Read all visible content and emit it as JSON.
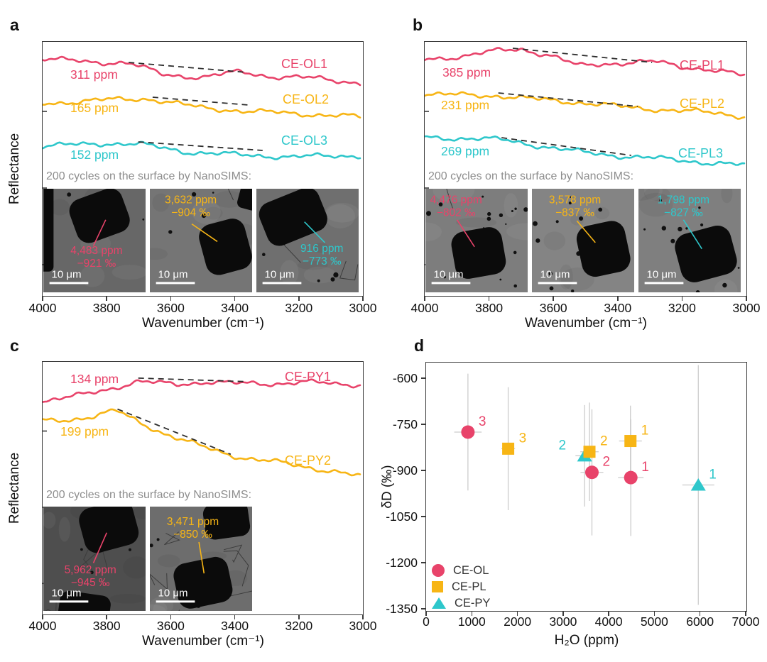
{
  "colors": {
    "red": "#e8436a",
    "yellow": "#f7b515",
    "cyan": "#2ec7cb",
    "inset_text": "#8e8e8e",
    "error_bar": "#cccccc",
    "axis": "#3a3a3a",
    "dashed": "#2d2d2d",
    "sem_text_scale": "#ffffff"
  },
  "chart_data": [
    {
      "panel_label": "a",
      "type": "line",
      "ylabel": "Reflectance",
      "xlabel": "Wavenumber (cm⁻¹)",
      "x_ticks": [
        "4000",
        "3800",
        "3600",
        "3400",
        "3200",
        "3000"
      ],
      "x_range": [
        4000,
        3000
      ],
      "x_axis_reversed": true,
      "y_axis_note": "arbitrary units, offset spectra",
      "inset_title": "200 cycles on the surface by NanoSIMS:",
      "series": [
        {
          "name": "CE-OL1",
          "water_label": "311 ppm",
          "color_key": "red",
          "seed": 1,
          "anchors": [
            [
              0,
              24
            ],
            [
              0.15,
              28
            ],
            [
              0.27,
              30
            ],
            [
              0.38,
              46
            ],
            [
              0.5,
              50
            ],
            [
              0.62,
              42
            ],
            [
              0.72,
              49
            ],
            [
              0.85,
              51
            ],
            [
              1,
              58
            ]
          ],
          "dashed": [
            [
              0.27,
              29
            ],
            [
              0.64,
              43
            ]
          ],
          "name_pos": [
            337,
            22
          ],
          "ppm_pos": [
            40,
            37
          ]
        },
        {
          "name": "CE-OL2",
          "water_label": "165 ppm",
          "color_key": "yellow",
          "seed": 2,
          "anchors": [
            [
              0,
              87
            ],
            [
              0.18,
              82
            ],
            [
              0.33,
              80
            ],
            [
              0.5,
              93
            ],
            [
              0.65,
              98
            ],
            [
              0.8,
              101
            ],
            [
              1,
              106
            ]
          ],
          "dashed": [
            [
              0.345,
              78
            ],
            [
              0.645,
              89
            ]
          ],
          "name_pos": [
            339,
            72
          ],
          "ppm_pos": [
            40,
            84
          ]
        },
        {
          "name": "CE-OL3",
          "water_label": "152 ppm",
          "color_key": "cyan",
          "seed": 3,
          "anchors": [
            [
              0,
              147
            ],
            [
              0.2,
              143
            ],
            [
              0.3,
              144
            ],
            [
              0.45,
              155
            ],
            [
              0.6,
              159
            ],
            [
              0.78,
              162
            ],
            [
              1,
              160
            ]
          ],
          "dashed": [
            [
              0.3,
              141
            ],
            [
              0.69,
              153
            ]
          ],
          "name_pos": [
            337,
            130
          ],
          "ppm_pos": [
            40,
            150
          ]
        }
      ],
      "sem_images": [
        {
          "h2o": "4,483 ppm",
          "dD": "−921 ‰",
          "color_key": "red",
          "bg": "#676767",
          "scale_label": "10 μm",
          "text_pos": [
            52,
            54
          ],
          "line": [
            49,
            55,
            61,
            30
          ],
          "blobs": [
            [
              55,
              26,
              27,
              22,
              -20
            ],
            [
              1,
              38,
              9,
              42,
              0
            ]
          ],
          "specks": 3,
          "cracks": 0,
          "seed": 11
        },
        {
          "h2o": "3,632 ppm",
          "dD": "−904 ‰",
          "color_key": "yellow",
          "bg": "#757575",
          "scale_label": "10 μm",
          "text_pos": [
            40,
            5
          ],
          "line": [
            41,
            34,
            66,
            51
          ],
          "blobs": [
            [
              74,
              56,
              23,
              25,
              -15
            ],
            [
              97,
              8,
              10,
              12,
              15
            ]
          ],
          "specks": 5,
          "cracks": 1,
          "seed": 22
        },
        {
          "h2o": "916 ppm",
          "dD": "−773 ‰",
          "color_key": "cyan",
          "bg": "#6f6f6f",
          "scale_label": "10 μm",
          "text_pos": [
            64,
            52
          ],
          "line": [
            67,
            52,
            47,
            32
          ],
          "blobs": [
            [
              36,
              27,
              31,
              22,
              -22
            ]
          ],
          "specks": 6,
          "cracks": 2,
          "seed": 33
        }
      ]
    },
    {
      "panel_label": "b",
      "type": "line",
      "ylabel": "",
      "xlabel": "Wavenumber (cm⁻¹)",
      "x_ticks": [
        "4000",
        "3800",
        "3600",
        "3400",
        "3200",
        "3000"
      ],
      "x_range": [
        4000,
        3000
      ],
      "x_axis_reversed": true,
      "y_axis_note": "arbitrary units, offset spectra",
      "inset_title": "200 cycles on the surface by NanoSIMS:",
      "series": [
        {
          "name": "CE-PL1",
          "water_label": "385 ppm",
          "color_key": "red",
          "seed": 4,
          "anchors": [
            [
              0,
              25
            ],
            [
              0.12,
              20
            ],
            [
              0.22,
              13
            ],
            [
              0.3,
              10
            ],
            [
              0.4,
              20
            ],
            [
              0.48,
              34
            ],
            [
              0.56,
              31
            ],
            [
              0.64,
              29
            ],
            [
              0.72,
              28
            ],
            [
              0.8,
              35
            ],
            [
              0.88,
              38
            ],
            [
              1,
              48
            ]
          ],
          "dashed": [
            [
              0.275,
              9
            ],
            [
              0.71,
              29
            ]
          ],
          "name_pos": [
            360,
            24
          ],
          "ppm_pos": [
            26,
            34
          ]
        },
        {
          "name": "CE-PL2",
          "water_label": "231 ppm",
          "color_key": "yellow",
          "seed": 5,
          "anchors": [
            [
              0,
              74
            ],
            [
              0.15,
              75
            ],
            [
              0.23,
              76
            ],
            [
              0.35,
              81
            ],
            [
              0.5,
              86
            ],
            [
              0.65,
              93
            ],
            [
              0.8,
              97
            ],
            [
              0.9,
              100
            ],
            [
              1,
              105
            ]
          ],
          "dashed": [
            [
              0.23,
              72
            ],
            [
              0.665,
              91
            ]
          ],
          "name_pos": [
            360,
            78
          ],
          "ppm_pos": [
            24,
            80
          ]
        },
        {
          "name": "CE-PL3",
          "water_label": "269 ppm",
          "color_key": "cyan",
          "seed": 6,
          "anchors": [
            [
              0,
              135
            ],
            [
              0.15,
              136
            ],
            [
              0.24,
              138
            ],
            [
              0.38,
              148
            ],
            [
              0.5,
              156
            ],
            [
              0.62,
              161
            ],
            [
              0.75,
              165
            ],
            [
              0.88,
              170
            ],
            [
              1,
              174
            ]
          ],
          "dashed": [
            [
              0.24,
              135
            ],
            [
              0.645,
              160
            ]
          ],
          "name_pos": [
            358,
            148
          ],
          "ppm_pos": [
            24,
            145
          ]
        }
      ],
      "sem_images": [
        {
          "h2o": "4,476 ppm",
          "dD": "−802 ‰",
          "color_key": "red",
          "bg": "#7d7d7d",
          "scale_label": "10 μm",
          "text_pos": [
            30,
            5
          ],
          "line": [
            31,
            30,
            48,
            56
          ],
          "blobs": [
            [
              52,
              62,
              25,
              23,
              -10
            ]
          ],
          "specks": 16,
          "cracks": 1,
          "seed": 44
        },
        {
          "h2o": "3,578 ppm",
          "dD": "−837 ‰",
          "color_key": "yellow",
          "bg": "#848484",
          "scale_label": "10 μm",
          "text_pos": [
            42,
            5
          ],
          "line": [
            44,
            31,
            62,
            52
          ],
          "blobs": [
            [
              70,
              58,
              24,
              25,
              -12
            ]
          ],
          "specks": 14,
          "cracks": 0,
          "seed": 55
        },
        {
          "h2o": "1,798 ppm",
          "dD": "−827 ‰",
          "color_key": "cyan",
          "bg": "#7f7f7f",
          "scale_label": "10 μm",
          "text_pos": [
            44,
            5
          ],
          "line": [
            44,
            30,
            62,
            58
          ],
          "blobs": [
            [
              66,
              63,
              28,
              24,
              -15
            ]
          ],
          "specks": 12,
          "cracks": 0,
          "seed": 66
        }
      ]
    },
    {
      "panel_label": "c",
      "type": "line",
      "ylabel": "Reflectance",
      "xlabel": "Wavenumber (cm⁻¹)",
      "x_ticks": [
        "4000",
        "3800",
        "3600",
        "3400",
        "3200",
        "3000"
      ],
      "x_range": [
        4000,
        3000
      ],
      "x_axis_reversed": true,
      "y_axis_note": "arbitrary units, offset spectra",
      "inset_title": "200 cycles on the surface by NanoSIMS:",
      "series": [
        {
          "name": "CE-PY1",
          "water_label": "134 ppm",
          "color_key": "red",
          "seed": 7,
          "anchors": [
            [
              0,
              56
            ],
            [
              0.1,
              49
            ],
            [
              0.2,
              39
            ],
            [
              0.3,
              28
            ],
            [
              0.42,
              32
            ],
            [
              0.52,
              28
            ],
            [
              0.62,
              31
            ],
            [
              0.72,
              31
            ],
            [
              0.82,
              28
            ],
            [
              0.92,
              32
            ],
            [
              1,
              32
            ]
          ],
          "dashed": [
            [
              0.3,
              23
            ],
            [
              0.64,
              28
            ]
          ],
          "name_pos": [
            342,
            12
          ],
          "ppm_pos": [
            40,
            15
          ]
        },
        {
          "name": "CE-PY2",
          "water_label": "199 ppm",
          "color_key": "yellow",
          "seed": 8,
          "anchors": [
            [
              0,
              84
            ],
            [
              0.08,
              82
            ],
            [
              0.16,
              77
            ],
            [
              0.23,
              69
            ],
            [
              0.3,
              85
            ],
            [
              0.38,
              101
            ],
            [
              0.46,
              114
            ],
            [
              0.54,
              126
            ],
            [
              0.62,
              135
            ],
            [
              0.72,
              141
            ],
            [
              0.82,
              149
            ],
            [
              0.92,
              155
            ],
            [
              1,
              163
            ]
          ],
          "dashed": [
            [
              0.235,
              67
            ],
            [
              0.59,
              131
            ]
          ],
          "name_pos": [
            342,
            130
          ],
          "ppm_pos": [
            26,
            89
          ]
        }
      ],
      "sem_images": [
        {
          "h2o": "5,962 ppm",
          "dD": "−945 ‰",
          "color_key": "red",
          "bg": "#4e4e4e",
          "scale_label": "10 μm",
          "text_pos": [
            46,
            55
          ],
          "line": [
            49,
            54,
            62,
            25
          ],
          "blobs": [
            [
              64,
              19,
              27,
              22,
              -15
            ],
            [
              40,
              99,
              25,
              16,
              8
            ]
          ],
          "specks": 4,
          "cracks": 3,
          "seed": 77
        },
        {
          "h2o": "3,471 ppm",
          "dD": "−850 ‰",
          "color_key": "yellow",
          "bg": "#6d6d6d",
          "scale_label": "10 μm",
          "text_pos": [
            42,
            9
          ],
          "line": [
            48,
            34,
            53,
            64
          ],
          "blobs": [
            [
              75,
              13,
              22,
              17,
              -8
            ],
            [
              52,
              73,
              27,
              22,
              -12
            ]
          ],
          "specks": 4,
          "cracks": 6,
          "seed": 88
        }
      ]
    },
    {
      "panel_label": "d",
      "type": "scatter",
      "xlabel": "H₂O (ppm)",
      "ylabel": "δD (‰)",
      "x_range": [
        0,
        7000
      ],
      "y_range": [
        -1352,
        -552
      ],
      "x_ticks": [
        0,
        1000,
        2000,
        3000,
        4000,
        5000,
        6000,
        7000
      ],
      "y_ticks": [
        -600,
        -750,
        -900,
        -1050,
        -1200,
        -1350
      ],
      "grid": false,
      "legend_position": "bottom-left inside",
      "legend": [
        {
          "label": "CE-OL",
          "marker": "circle",
          "color_key": "red"
        },
        {
          "label": "CE-PL",
          "marker": "square",
          "color_key": "yellow"
        },
        {
          "label": "CE-PY",
          "marker": "triangle",
          "color_key": "cyan"
        }
      ],
      "points": [
        {
          "series": "CE-OL",
          "marker": "circle",
          "color_key": "red",
          "label": "3",
          "x": 916,
          "y": -773,
          "y_err": 190,
          "x_err": 300,
          "label_side": "right"
        },
        {
          "series": "CE-PL",
          "marker": "square",
          "color_key": "yellow",
          "label": "3",
          "x": 1798,
          "y": -827,
          "y_err": 200,
          "x_err": 150,
          "label_side": "right"
        },
        {
          "series": "CE-PY",
          "marker": "triangle",
          "color_key": "cyan",
          "label": "2",
          "x": 3471,
          "y": -850,
          "y_err": 165,
          "x_err": 200,
          "label_side": "left"
        },
        {
          "series": "CE-PL",
          "marker": "square",
          "color_key": "yellow",
          "label": "2",
          "x": 3578,
          "y": -837,
          "y_err": 160,
          "x_err": 200,
          "label_side": "right"
        },
        {
          "series": "CE-OL",
          "marker": "circle",
          "color_key": "red",
          "label": "2",
          "x": 3632,
          "y": -904,
          "y_err": 205,
          "x_err": 250,
          "label_side": "right"
        },
        {
          "series": "CE-PL",
          "marker": "square",
          "color_key": "yellow",
          "label": "1",
          "x": 4476,
          "y": -802,
          "y_err": 115,
          "x_err": 250,
          "label_side": "right"
        },
        {
          "series": "CE-OL",
          "marker": "circle",
          "color_key": "red",
          "label": "1",
          "x": 4483,
          "y": -921,
          "y_err": 190,
          "x_err": 280,
          "label_side": "right"
        },
        {
          "series": "CE-PY",
          "marker": "triangle",
          "color_key": "cyan",
          "label": "1",
          "x": 5962,
          "y": -945,
          "y_err": 390,
          "x_err": 350,
          "label_side": "right"
        }
      ]
    }
  ]
}
